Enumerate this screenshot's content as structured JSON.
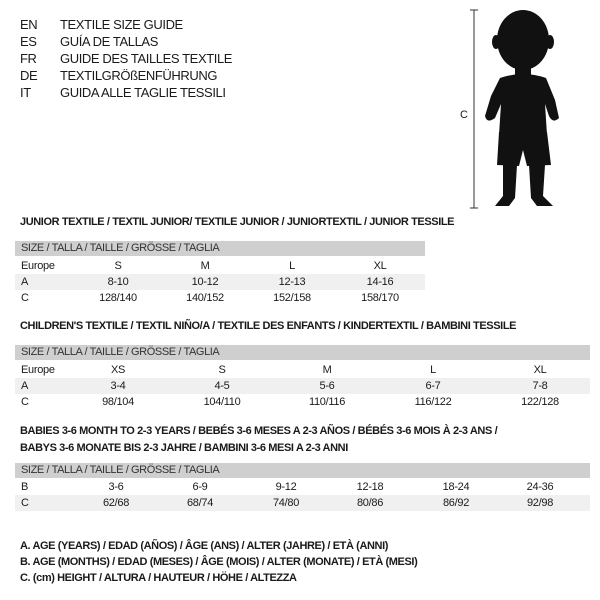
{
  "header": [
    {
      "code": "EN",
      "title": "TEXTILE SIZE GUIDE"
    },
    {
      "code": "ES",
      "title": "GUÍA DE TALLAS"
    },
    {
      "code": "FR",
      "title": "GUIDE DES TAILLES TEXTILE"
    },
    {
      "code": "DE",
      "title": "TEXTILGRÖßENFÜHRUNG"
    },
    {
      "code": "IT",
      "title": "GUIDA ALLE TAGLIE TESSILI"
    }
  ],
  "figure": {
    "measure_label": "C"
  },
  "size_label": "SIZE / TALLA / TAILLE / GRÖSSE / TAGLIA",
  "tables": [
    {
      "title": "JUNIOR TEXTILE / TEXTIL JUNIOR/ TEXTILE JUNIOR / JUNIORTEXTIL / JUNIOR TESSILE",
      "rows": [
        {
          "label": "Europe",
          "values": [
            "S",
            "M",
            "L",
            "XL"
          ]
        },
        {
          "label": "A",
          "values": [
            "8-10",
            "10-12",
            "12-13",
            "14-16"
          ]
        },
        {
          "label": "C",
          "values": [
            "128/140",
            "140/152",
            "152/158",
            "158/170"
          ]
        }
      ]
    },
    {
      "title": "CHILDREN'S TEXTILE / TEXTIL NIÑO/A / TEXTILE DES ENFANTS / KINDERTEXTIL / BAMBINI TESSILE",
      "rows": [
        {
          "label": "Europe",
          "values": [
            "XS",
            "S",
            "M",
            "L",
            "XL"
          ]
        },
        {
          "label": "A",
          "values": [
            "3-4",
            "4-5",
            "5-6",
            "6-7",
            "7-8"
          ]
        },
        {
          "label": "C",
          "values": [
            "98/104",
            "104/110",
            "110/116",
            "116/122",
            "122/128"
          ]
        }
      ]
    },
    {
      "title": "BABIES 3-6 MONTH TO 2-3 YEARS / BEBÉS 3-6 MESES A 2-3 AÑOS / BÉBÉS 3-6 MOIS À 2-3 ANS /",
      "title2": "BABYS 3-6 MONATE BIS 2-3 JAHRE / BAMBINI 3-6 MESI A 2-3 ANNI",
      "rows": [
        {
          "label": "B",
          "values": [
            "3-6",
            "6-9",
            "9-12",
            "12-18",
            "18-24",
            "24-36"
          ]
        },
        {
          "label": "C",
          "values": [
            "62/68",
            "68/74",
            "74/80",
            "80/86",
            "86/92",
            "92/98"
          ]
        }
      ]
    }
  ],
  "legend": [
    "A. AGE (YEARS) / EDAD (AÑOS) / ÂGE (ANS) / ALTER (JAHRE) / ETÀ (ANNI)",
    "B. AGE (MONTHS) / EDAD (MESES) / ÂGE (MOIS) / ALTER (MONATE) / ETÀ (MESI)",
    "C. (cm) HEIGHT / ALTURA / HAUTEUR / HÖHE / ALTEZZA"
  ]
}
